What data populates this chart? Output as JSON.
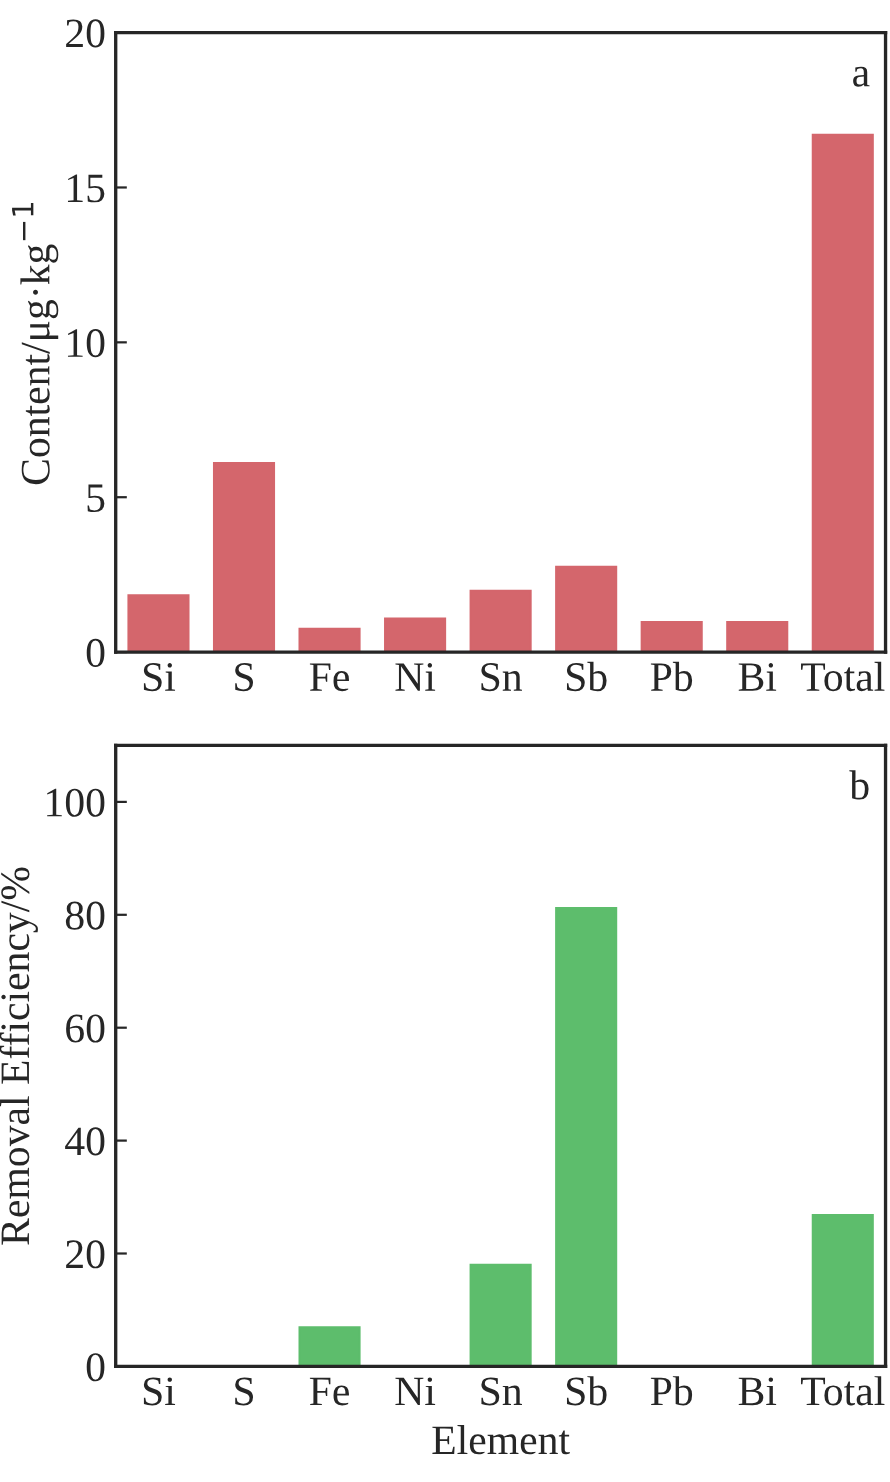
{
  "chart_data": [
    {
      "type": "bar",
      "ylabel": "Content/μg·kg$^{−1}$",
      "annotations": [
        "a"
      ],
      "categories": [
        "Si",
        "S",
        "Fe",
        "Ni",
        "Sn",
        "Sb",
        "Pb",
        "Bi",
        "Total"
      ],
      "values": [
        1.83,
        6.1,
        0.75,
        1.08,
        1.98,
        2.75,
        0.97,
        0.97,
        16.7
      ],
      "color": "#d4666c",
      "ylim": [
        0,
        20
      ],
      "yticks": [
        0,
        5,
        10,
        15,
        20
      ],
      "grid": false,
      "legend": false
    },
    {
      "type": "bar",
      "xlabel": "Element",
      "ylabel": "Removal Efficiency/%",
      "annotations": [
        "b"
      ],
      "categories": [
        "Si",
        "S",
        "Fe",
        "Ni",
        "Sn",
        "Sb",
        "Pb",
        "Bi",
        "Total"
      ],
      "values": [
        0,
        0,
        6.9,
        0,
        18.0,
        81.2,
        0,
        0,
        26.8
      ],
      "color": "#5dbd6c",
      "ylim": [
        0,
        110
      ],
      "yticks": [
        0,
        20,
        40,
        60,
        80,
        100
      ],
      "grid": false,
      "legend": false
    }
  ]
}
